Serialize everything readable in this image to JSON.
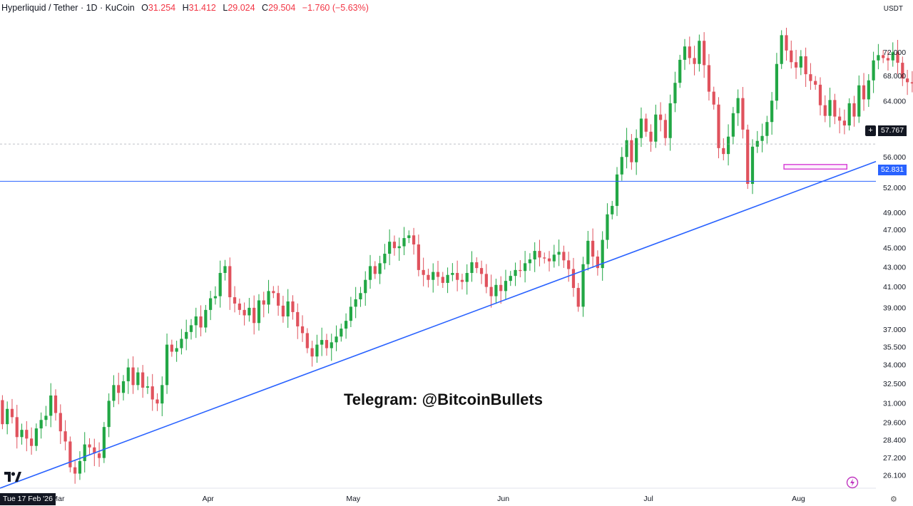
{
  "header": {
    "symbol": "Hyperliquid / Tether · 1D · KuCoin",
    "open_label": "O",
    "open_value": "31.254",
    "high_label": "H",
    "high_value": "31.412",
    "low_label": "L",
    "low_value": "29.024",
    "close_label": "C",
    "close_value": "29.504",
    "change": "−1.760 (−5.63%)"
  },
  "currency": "USDT",
  "watermark": "Telegram: @BitcoinBullets",
  "date_badge": "Tue 17 Feb '26",
  "current_price_label": "57.767",
  "level_price_label": "52.831",
  "colors": {
    "up": "#22a745",
    "down": "#e0525d",
    "trendline": "#2962ff",
    "level": "#2962ff",
    "box": "#d63bd6",
    "text": "#131722"
  },
  "icons": [
    "tradingview-logo-icon",
    "lightning-icon",
    "settings-icon",
    "crosshair-plus-icon"
  ],
  "chart_data": {
    "type": "candlestick",
    "scale": "log",
    "ylim": [
      25.3,
      80.5
    ],
    "y_ticks": [
      "26.100",
      "27.200",
      "28.400",
      "29.600",
      "31.000",
      "32.500",
      "34.000",
      "35.500",
      "37.000",
      "39.000",
      "41.000",
      "43.000",
      "45.000",
      "47.000",
      "49.000",
      "52.000",
      "56.000",
      "60.000",
      "64.000",
      "68.000",
      "72.000"
    ],
    "x_ticks": [
      "Mar",
      "Apr",
      "May",
      "Jun",
      "Jul",
      "Aug"
    ],
    "x_tick_days": [
      12,
      43,
      73,
      104,
      134,
      165
    ],
    "first_day": "17 Feb",
    "last_day": 176,
    "x_domain": [
      0,
      181
    ],
    "series": [
      {
        "name": "",
        "type": "candles",
        "close": [
          29.5,
          30.6,
          30.0,
          28.6,
          29.1,
          28.5,
          28.0,
          29.2,
          29.8,
          30.1,
          31.6,
          30.3,
          29.0,
          28.3,
          26.6,
          26.2,
          27.0,
          28.1,
          27.9,
          27.5,
          27.2,
          29.3,
          31.2,
          32.4,
          31.8,
          32.7,
          33.8,
          32.4,
          33.4,
          32.2,
          32.3,
          31.3,
          31.0,
          32.4,
          35.7,
          35.1,
          35.4,
          36.2,
          36.8,
          37.4,
          38.2,
          37.2,
          38.8,
          39.9,
          40.1,
          42.4,
          43.1,
          40.0,
          39.4,
          38.8,
          38.3,
          39.0,
          37.6,
          39.7,
          39.3,
          40.6,
          40.4,
          39.2,
          38.2,
          39.6,
          38.6,
          37.3,
          36.7,
          35.4,
          34.7,
          35.7,
          36.1,
          35.4,
          35.9,
          36.4,
          37.1,
          37.8,
          39.1,
          39.8,
          40.4,
          41.7,
          43.1,
          42.3,
          43.4,
          44.4,
          45.7,
          45.0,
          45.2,
          46.1,
          46.4,
          45.4,
          42.7,
          42.2,
          41.7,
          42.5,
          42.0,
          41.4,
          42.2,
          42.4,
          41.7,
          41.5,
          42.4,
          43.5,
          42.9,
          42.3,
          41.0,
          40.1,
          41.2,
          40.6,
          41.6,
          42.1,
          42.7,
          42.6,
          43.4,
          43.8,
          44.7,
          44.0,
          43.9,
          43.6,
          44.3,
          44.6,
          43.7,
          42.8,
          40.9,
          39.1,
          43.3,
          45.8,
          44.1,
          42.9,
          45.9,
          48.8,
          49.8,
          53.7,
          56.0,
          58.3,
          55.3,
          58.6,
          61.4,
          59.5,
          58.1,
          62.0,
          61.2,
          58.6,
          63.7,
          66.9,
          70.7,
          73.0,
          71.0,
          70.0,
          74.0,
          69.8,
          65.5,
          63.5,
          57.2,
          56.4,
          58.8,
          62.2,
          64.5,
          59.8,
          52.5,
          57.4,
          58.2,
          58.9,
          60.9,
          64.1,
          70.0,
          75.0,
          72.3,
          70.3,
          69.4,
          71.3,
          68.3,
          67.2,
          66.6,
          63.4,
          61.8,
          64.2,
          61.7,
          61.1,
          60.4,
          63.7,
          61.7,
          66.5,
          64.3,
          67.3,
          70.6,
          71.5,
          71.0,
          70.6,
          72.0,
          70.2,
          67.6,
          67.0,
          66.8,
          66.5,
          65.9,
          67.6,
          66.0,
          64.7,
          66.4,
          63.6
        ],
        "note": "daily closes from 17 Feb to mid Aug, read off the price axis (approximate)"
      }
    ],
    "horizontal_levels": [
      52.831,
      57.767
    ],
    "trendline": {
      "from_day": 0,
      "from_value": 25.3,
      "to_day": 181,
      "to_value": 55.4
    }
  }
}
